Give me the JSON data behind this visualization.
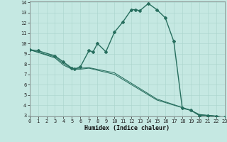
{
  "xlabel": "Humidex (Indice chaleur)",
  "xlim": [
    0,
    23
  ],
  "ylim": [
    3,
    14
  ],
  "xticks": [
    0,
    1,
    2,
    3,
    4,
    5,
    6,
    7,
    8,
    9,
    10,
    11,
    12,
    13,
    14,
    15,
    16,
    17,
    18,
    19,
    20,
    21,
    22,
    23
  ],
  "yticks": [
    3,
    4,
    5,
    6,
    7,
    8,
    9,
    10,
    11,
    12,
    13,
    14
  ],
  "background_color": "#c5e8e2",
  "grid_color": "#aad4cc",
  "line_color": "#276e5e",
  "line_width": 1.0,
  "marker": "D",
  "marker_size": 2.0,
  "series1": [
    [
      0,
      9.4
    ],
    [
      1,
      9.3
    ],
    [
      3,
      8.8
    ],
    [
      4,
      8.2
    ],
    [
      5,
      7.6
    ],
    [
      5.3,
      7.5
    ],
    [
      6,
      7.75
    ],
    [
      7,
      9.3
    ],
    [
      7.5,
      9.2
    ],
    [
      8,
      10.0
    ],
    [
      9,
      9.2
    ],
    [
      10,
      11.1
    ],
    [
      11,
      12.1
    ],
    [
      12,
      13.3
    ],
    [
      12.5,
      13.3
    ],
    [
      13,
      13.2
    ],
    [
      14,
      13.9
    ],
    [
      15,
      13.3
    ],
    [
      16,
      12.5
    ],
    [
      17,
      10.2
    ],
    [
      18,
      3.7
    ],
    [
      19,
      3.5
    ],
    [
      20,
      3.0
    ],
    [
      21,
      3.0
    ],
    [
      22,
      2.9
    ],
    [
      23,
      2.8
    ]
  ],
  "series2": [
    [
      0,
      9.4
    ],
    [
      3,
      8.6
    ],
    [
      4,
      7.9
    ],
    [
      5,
      7.5
    ],
    [
      6,
      7.5
    ],
    [
      7,
      7.6
    ],
    [
      10,
      7.0
    ],
    [
      15,
      4.5
    ],
    [
      19,
      3.5
    ],
    [
      20,
      3.1
    ],
    [
      21,
      3.0
    ],
    [
      22,
      2.95
    ],
    [
      23,
      2.8
    ]
  ],
  "series3": [
    [
      0,
      9.4
    ],
    [
      3,
      8.7
    ],
    [
      4,
      8.05
    ],
    [
      5,
      7.55
    ],
    [
      6,
      7.6
    ],
    [
      7,
      7.65
    ],
    [
      10,
      7.15
    ],
    [
      15,
      4.6
    ],
    [
      19,
      3.5
    ],
    [
      20,
      3.05
    ],
    [
      21,
      3.0
    ],
    [
      22,
      2.92
    ],
    [
      23,
      2.8
    ]
  ]
}
